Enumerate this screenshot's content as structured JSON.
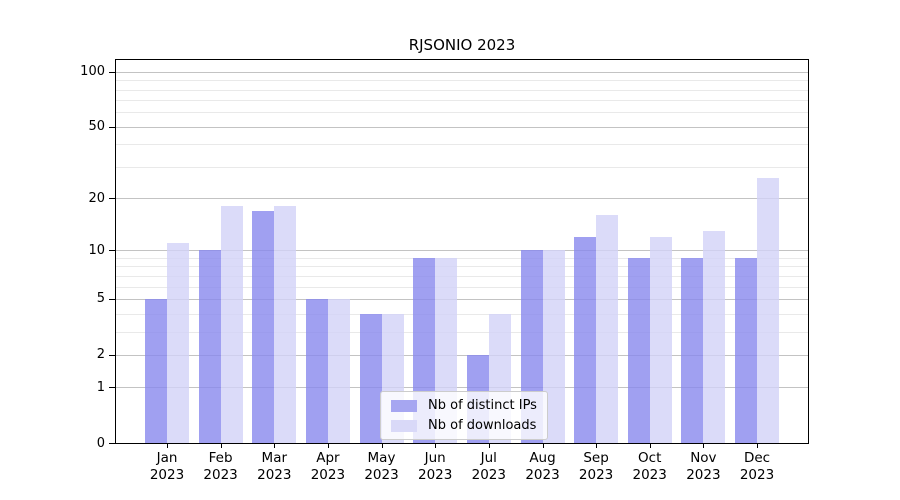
{
  "title": "RJSONIO 2023",
  "chart_data": {
    "type": "bar",
    "title": "RJSONIO 2023",
    "categories": [
      "Jan 2023",
      "Feb 2023",
      "Mar 2023",
      "Apr 2023",
      "May 2023",
      "Jun 2023",
      "Jul 2023",
      "Aug 2023",
      "Sep 2023",
      "Oct 2023",
      "Nov 2023",
      "Dec 2023"
    ],
    "series": [
      {
        "key": "ips",
        "name": "Nb of distinct IPs",
        "color": "#a6a6f1",
        "fill_rgba": "rgba(136,136,238,0.8)",
        "values": [
          5,
          10,
          17,
          5,
          4,
          9,
          2,
          10,
          12,
          9,
          9,
          9
        ]
      },
      {
        "key": "downloads",
        "name": "Nb of downloads",
        "color": "#d9d9f8",
        "fill_rgba": "rgba(210,210,247,0.8)",
        "values": [
          11,
          18,
          18,
          5,
          4,
          9,
          4,
          10,
          16,
          12,
          13,
          26
        ]
      }
    ],
    "xlabel": "",
    "ylabel": "",
    "y_axis": {
      "scale": "log10(x+1)",
      "major_ticks": [
        0,
        1,
        2,
        5,
        10,
        20,
        50,
        100
      ],
      "minor_ticks": [
        3,
        4,
        6,
        7,
        8,
        9,
        30,
        40,
        60,
        70,
        80,
        90
      ],
      "ylim": [
        0,
        116
      ]
    },
    "grid": true,
    "legend_position": "inside-bottom-center"
  }
}
